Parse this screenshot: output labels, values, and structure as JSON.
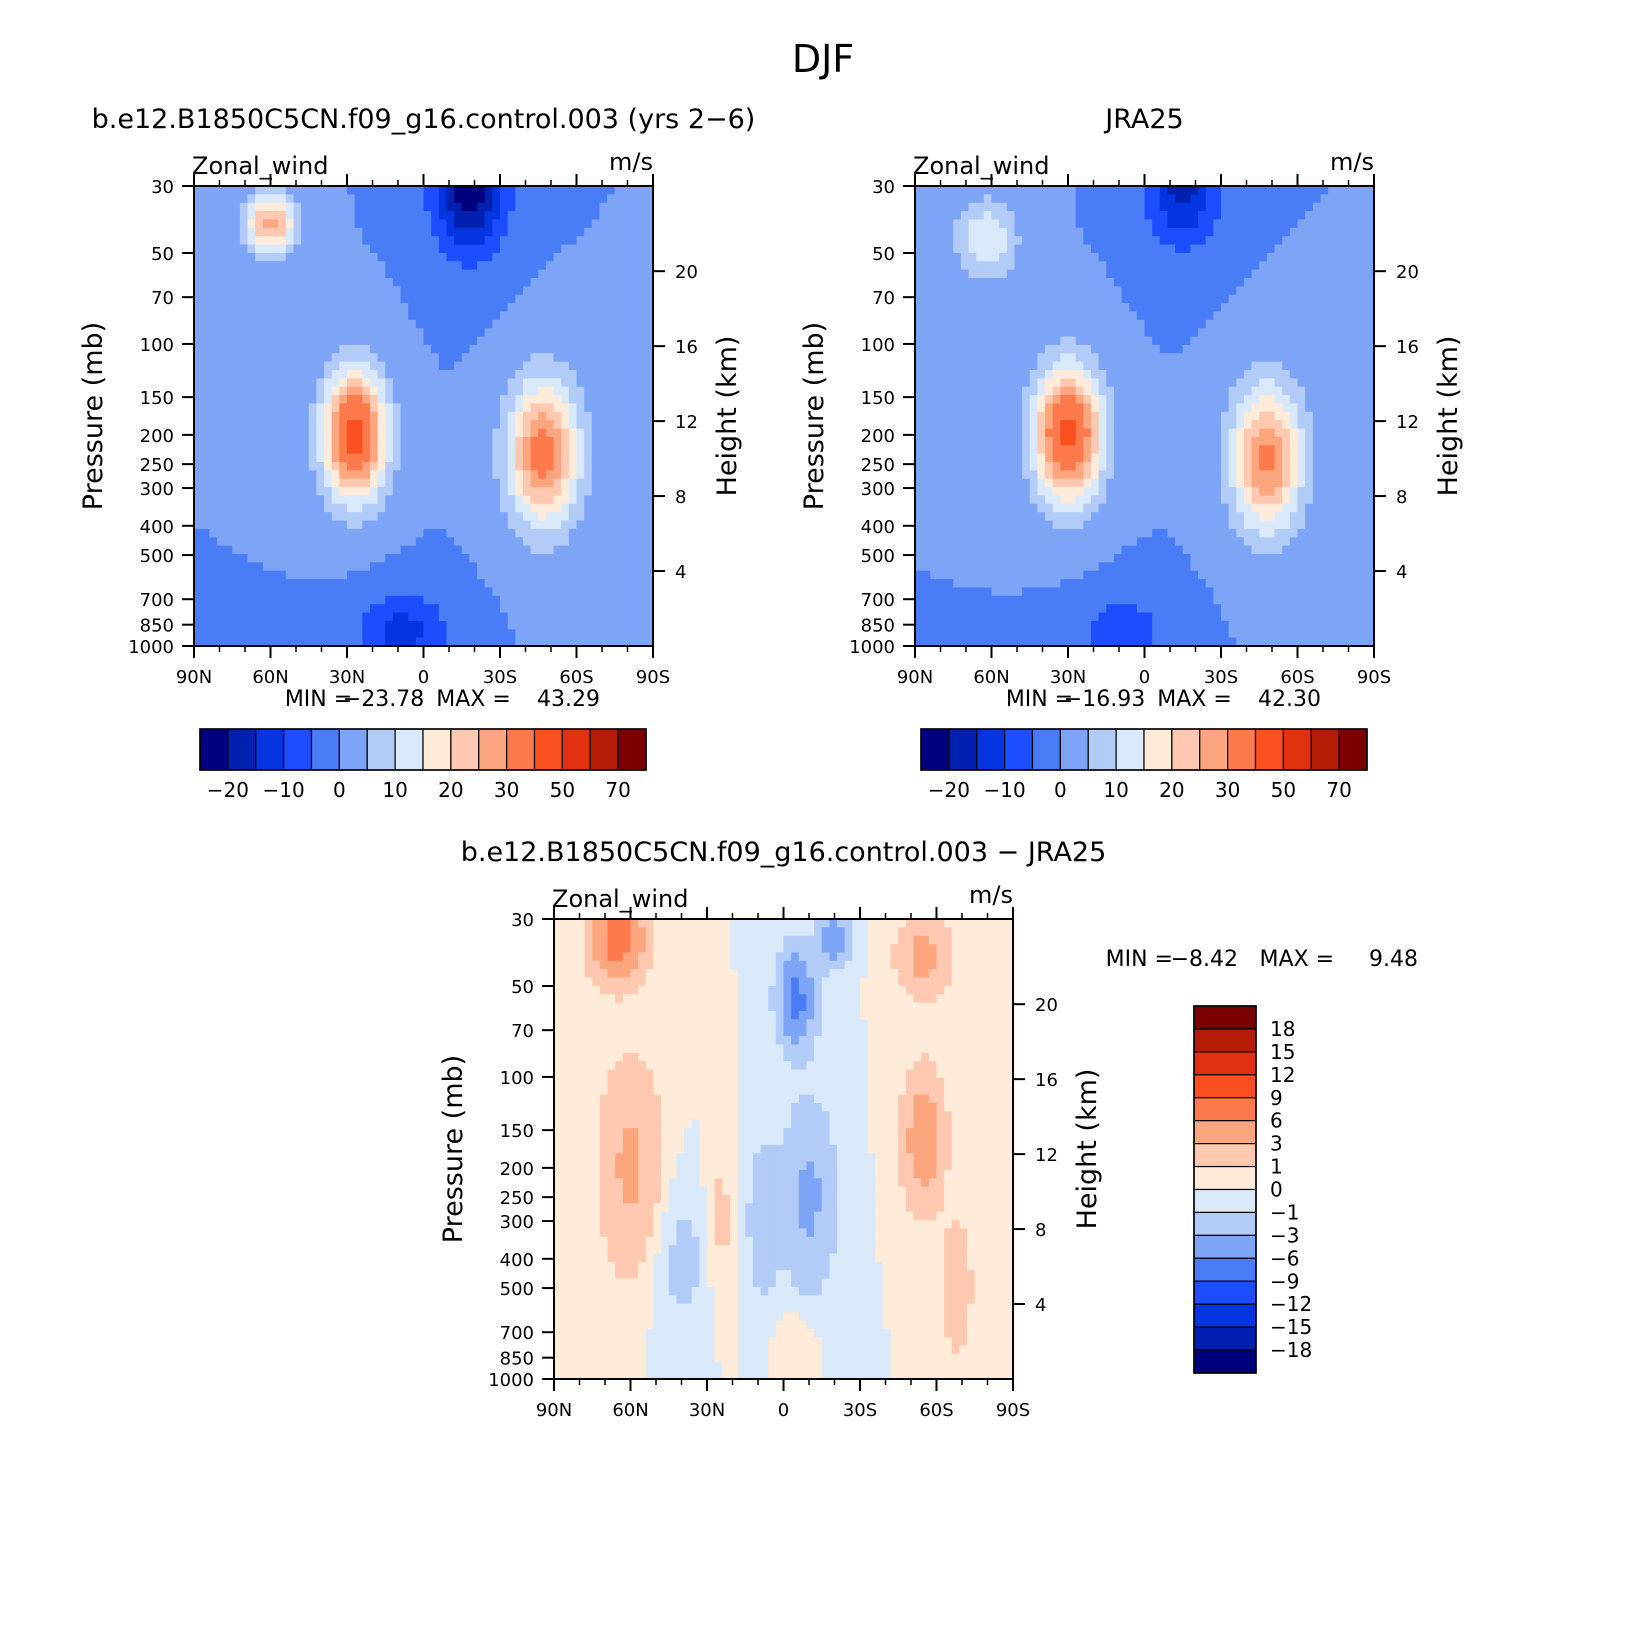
{
  "figure": {
    "title": "DJF"
  },
  "chart_data": [
    {
      "type": "heatmap",
      "title": "b.e12.B1850C5CN.f09_g16.control.003 (yrs 2−6)",
      "left_string": "Zonal_wind",
      "right_string": "m/s",
      "xlabel": "",
      "ylabel": "Pressure (mb)",
      "y2label": "Height (km)",
      "x_tick_labels": [
        "90N",
        "60N",
        "30N",
        "0",
        "30S",
        "60S",
        "90S"
      ],
      "y_tick_labels": [
        "30",
        "50",
        "70",
        "100",
        "150",
        "200",
        "250",
        "300",
        "400",
        "500",
        "700",
        "850",
        "1000"
      ],
      "y2_tick_labels": [
        "20",
        "16",
        "12",
        "8",
        "4"
      ],
      "xlim": [
        90,
        -90
      ],
      "ylim": [
        1000,
        30
      ],
      "y_scale": "log",
      "stats": {
        "min_label": "MIN =",
        "min": "−23.78",
        "max_label": "MAX =",
        "max": "43.29"
      },
      "colorbar": {
        "orientation": "horizontal",
        "labels": [
          "−20",
          "−10",
          "0",
          "10",
          "20",
          "30",
          "50",
          "70"
        ],
        "levels": [
          -25,
          -20,
          -15,
          -10,
          -5,
          0,
          5,
          10,
          15,
          20,
          25,
          30,
          40,
          50,
          60,
          70
        ],
        "colors": [
          "#00007e",
          "#0020b0",
          "#0535e0",
          "#1c4dff",
          "#4a7df5",
          "#7ea4f5",
          "#b3cbf7",
          "#d9e9fa",
          "#feebd9",
          "#fec9b0",
          "#fca67f",
          "#fc7a4b",
          "#fa4f1f",
          "#e03110",
          "#b51c06",
          "#7c0000"
        ]
      },
      "features": [
        {
          "lat": 60,
          "p": 40,
          "peak": 27,
          "w": 10,
          "h": 0.22
        },
        {
          "lat": 27,
          "p": 200,
          "peak": 43,
          "w": 12,
          "h": 0.48
        },
        {
          "lat": -47,
          "p": 230,
          "peak": 33,
          "w": 14,
          "h": 0.55
        },
        {
          "lat": -18,
          "p": 30,
          "peak": -24,
          "w": 14,
          "h": 0.5
        },
        {
          "lat": 8,
          "p": 900,
          "peak": -12,
          "w": 18,
          "h": 0.3
        }
      ]
    },
    {
      "type": "heatmap",
      "title": "JRA25",
      "left_string": "Zonal_wind",
      "right_string": "m/s",
      "xlabel": "",
      "ylabel": "Pressure (mb)",
      "y2label": "Height (km)",
      "x_tick_labels": [
        "90N",
        "60N",
        "30N",
        "0",
        "30S",
        "60S",
        "90S"
      ],
      "y_tick_labels": [
        "30",
        "50",
        "70",
        "100",
        "150",
        "200",
        "250",
        "300",
        "400",
        "500",
        "700",
        "850",
        "1000"
      ],
      "y2_tick_labels": [
        "20",
        "16",
        "12",
        "8",
        "4"
      ],
      "xlim": [
        90,
        -90
      ],
      "ylim": [
        1000,
        30
      ],
      "y_scale": "log",
      "stats": {
        "min_label": "MIN =",
        "min": "−16.93",
        "max_label": "MAX =",
        "max": "42.30"
      },
      "colorbar": {
        "orientation": "horizontal",
        "labels": [
          "−20",
          "−10",
          "0",
          "10",
          "20",
          "30",
          "50",
          "70"
        ],
        "levels": [
          -25,
          -20,
          -15,
          -10,
          -5,
          0,
          5,
          10,
          15,
          20,
          25,
          30,
          40,
          50,
          60,
          70
        ],
        "colors": [
          "#00007e",
          "#0020b0",
          "#0535e0",
          "#1c4dff",
          "#4a7df5",
          "#7ea4f5",
          "#b3cbf7",
          "#d9e9fa",
          "#feebd9",
          "#fec9b0",
          "#fca67f",
          "#fc7a4b",
          "#fa4f1f",
          "#e03110",
          "#b51c06",
          "#7c0000"
        ]
      },
      "features": [
        {
          "lat": 62,
          "p": 45,
          "peak": 15,
          "w": 12,
          "h": 0.3
        },
        {
          "lat": 30,
          "p": 200,
          "peak": 42,
          "w": 13,
          "h": 0.5
        },
        {
          "lat": -48,
          "p": 240,
          "peak": 31,
          "w": 14,
          "h": 0.55
        },
        {
          "lat": -15,
          "p": 30,
          "peak": -17,
          "w": 14,
          "h": 0.45
        },
        {
          "lat": 8,
          "p": 900,
          "peak": -8,
          "w": 18,
          "h": 0.3
        }
      ]
    },
    {
      "type": "heatmap",
      "title": "b.e12.B1850C5CN.f09_g16.control.003 − JRA25",
      "left_string": "Zonal_wind",
      "right_string": "m/s",
      "xlabel": "",
      "ylabel": "Pressure (mb)",
      "y2label": "Height (km)",
      "x_tick_labels": [
        "90N",
        "60N",
        "30N",
        "0",
        "30S",
        "60S",
        "90S"
      ],
      "y_tick_labels": [
        "30",
        "50",
        "70",
        "100",
        "150",
        "200",
        "250",
        "300",
        "400",
        "500",
        "700",
        "850",
        "1000"
      ],
      "y2_tick_labels": [
        "20",
        "16",
        "12",
        "8",
        "4"
      ],
      "xlim": [
        90,
        -90
      ],
      "ylim": [
        1000,
        30
      ],
      "y_scale": "log",
      "stats": {
        "min_label": "MIN =",
        "min": "−8.42",
        "max_label": "MAX =",
        "max": "9.48"
      },
      "colorbar": {
        "orientation": "vertical",
        "labels": [
          "18",
          "15",
          "12",
          "9",
          "6",
          "3",
          "1",
          "0",
          "−1",
          "−3",
          "−6",
          "−9",
          "−12",
          "−15",
          "−18"
        ],
        "levels": [
          -21,
          -18,
          -15,
          -12,
          -9,
          -6,
          -3,
          -1,
          0,
          1,
          3,
          6,
          9,
          12,
          15,
          18
        ],
        "colors": [
          "#00007e",
          "#0020b0",
          "#0535e0",
          "#1c4dff",
          "#4a7df5",
          "#7ea4f5",
          "#b3cbf7",
          "#d9e9fa",
          "#feebd9",
          "#fec9b0",
          "#fca67f",
          "#fc7a4b",
          "#fa4f1f",
          "#e03110",
          "#b51c06",
          "#7c0000"
        ]
      },
      "features": [
        {
          "lat": 65,
          "p": 35,
          "peak": 8,
          "w": 10,
          "h": 0.3
        },
        {
          "lat": 60,
          "p": 200,
          "peak": 3.5,
          "w": 12,
          "h": 0.8
        },
        {
          "lat": -55,
          "p": 160,
          "peak": 5,
          "w": 8,
          "h": 0.5
        },
        {
          "lat": -55,
          "p": 40,
          "peak": 4,
          "w": 10,
          "h": 0.3
        },
        {
          "lat": -68,
          "p": 500,
          "peak": 2.5,
          "w": 6,
          "h": 0.5
        },
        {
          "lat": -5,
          "p": 55,
          "peak": -7,
          "w": 7,
          "h": 0.35
        },
        {
          "lat": -20,
          "p": 35,
          "peak": -5,
          "w": 6,
          "h": 0.2
        },
        {
          "lat": -10,
          "p": 250,
          "peak": -3.5,
          "w": 10,
          "h": 0.7
        },
        {
          "lat": 25,
          "p": 300,
          "peak": 1.5,
          "w": 6,
          "h": 0.6
        },
        {
          "lat": 8,
          "p": 300,
          "peak": -2.5,
          "w": 6,
          "h": 0.6
        },
        {
          "lat": 40,
          "p": 400,
          "peak": -1.5,
          "w": 12,
          "h": 0.6
        },
        {
          "lat": -5,
          "p": 750,
          "peak": 1,
          "w": 8,
          "h": 0.25
        }
      ]
    }
  ]
}
